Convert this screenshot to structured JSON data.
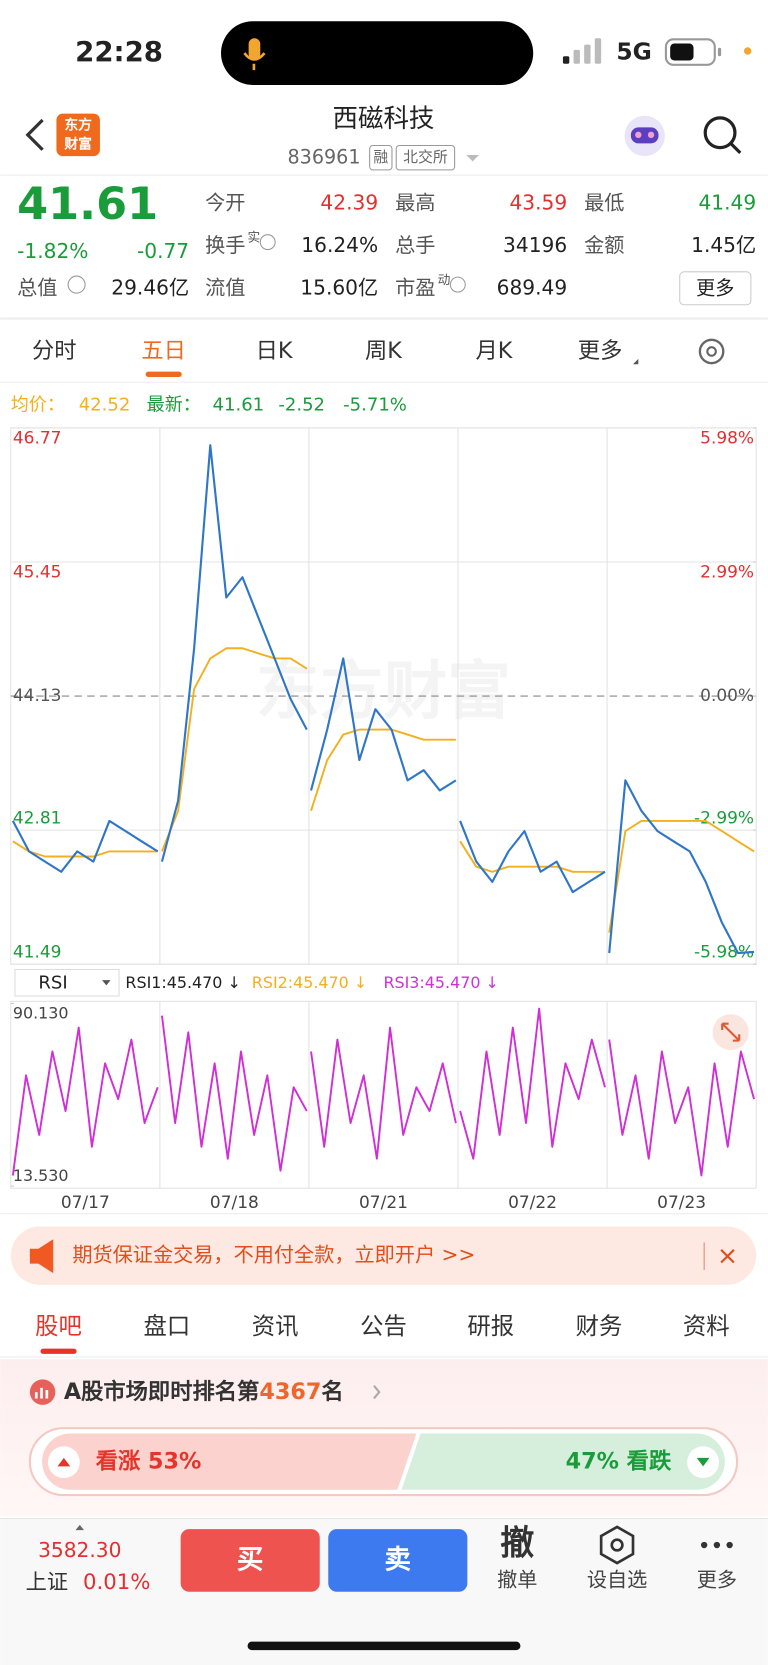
{
  "status_bar": {
    "time": "22:28",
    "network": "5G"
  },
  "header": {
    "logo": [
      "东方",
      "财富"
    ],
    "title": "西磁科技",
    "code": "836961",
    "tags": [
      "融",
      "北交所"
    ]
  },
  "quote": {
    "price": "41.61",
    "change_pct": "-1.82%",
    "change": "-0.77",
    "stats": [
      {
        "label": "今开",
        "value": "42.39",
        "color": "#e52f2f"
      },
      {
        "label": "最高",
        "value": "43.59",
        "color": "#e52f2f"
      },
      {
        "label": "最低",
        "value": "41.49",
        "color": "#1a9c3a"
      },
      {
        "label": "换手",
        "sup": "实",
        "value": "16.24%",
        "color": "#222"
      },
      {
        "label": "总手",
        "value": "34196",
        "color": "#222"
      },
      {
        "label": "金额",
        "value": "1.45亿",
        "color": "#222"
      },
      {
        "label": "流值",
        "value": "15.60亿",
        "color": "#222"
      },
      {
        "label": "市盈",
        "sup": "动",
        "value": "689.49",
        "color": "#222"
      }
    ],
    "total": {
      "label": "总值",
      "value": "29.46亿"
    },
    "more": "更多"
  },
  "tabs": {
    "items": [
      "分时",
      "五日",
      "日K",
      "周K",
      "月K",
      "更多"
    ],
    "active": 1
  },
  "chart": {
    "legend": {
      "avg_label": "均价：",
      "avg": "42.52",
      "latest_label": "最新：",
      "latest": "41.61",
      "change": "-2.52",
      "change_pct": "-5.71%"
    },
    "watermark": "东方财富",
    "ylim": [
      41.49,
      46.77
    ],
    "yticks": [
      46.77,
      45.45,
      44.13,
      42.81,
      41.49
    ],
    "y2lim": [
      -5.98,
      5.98
    ],
    "y2ticks": [
      {
        "value": 5.98,
        "label": "5.98%"
      },
      {
        "value": 2.99,
        "label": "2.99%"
      },
      {
        "value": 0,
        "label": "0.00%"
      },
      {
        "value": -2.99,
        "label": "-2.99%"
      },
      {
        "value": -5.98,
        "label": "-5.98%"
      }
    ],
    "price_color": "#2f76c8",
    "avg_color": "#f2b01e",
    "days": [
      {
        "date": "07/17",
        "price": [
          42.9,
          42.6,
          42.5,
          42.4,
          42.6,
          42.5,
          42.9,
          42.8,
          42.7,
          42.6
        ],
        "avg": [
          42.7,
          42.6,
          42.55,
          42.55,
          42.55,
          42.55,
          42.6,
          42.6,
          42.6,
          42.6
        ]
      },
      {
        "date": "07/18",
        "price": [
          42.5,
          43.1,
          44.6,
          46.6,
          45.1,
          45.3,
          44.9,
          44.5,
          44.1,
          43.8
        ],
        "avg": [
          42.6,
          43.0,
          44.2,
          44.5,
          44.6,
          44.6,
          44.55,
          44.5,
          44.5,
          44.4
        ]
      },
      {
        "date": "07/21",
        "price": [
          43.2,
          43.8,
          44.5,
          43.5,
          44.0,
          43.8,
          43.3,
          43.4,
          43.2,
          43.3
        ],
        "avg": [
          43.0,
          43.5,
          43.75,
          43.8,
          43.8,
          43.8,
          43.75,
          43.7,
          43.7,
          43.7
        ]
      },
      {
        "date": "07/22",
        "price": [
          42.9,
          42.5,
          42.3,
          42.6,
          42.8,
          42.4,
          42.5,
          42.2,
          42.3,
          42.4
        ],
        "avg": [
          42.7,
          42.45,
          42.4,
          42.45,
          42.45,
          42.45,
          42.45,
          42.4,
          42.4,
          42.4
        ]
      },
      {
        "date": "07/23",
        "price": [
          41.6,
          43.3,
          43.0,
          42.8,
          42.7,
          42.6,
          42.3,
          41.9,
          41.6,
          41.61
        ],
        "avg": [
          41.8,
          42.8,
          42.9,
          42.9,
          42.9,
          42.9,
          42.9,
          42.8,
          42.7,
          42.6
        ]
      }
    ]
  },
  "rsi": {
    "selector": "RSI",
    "labels": [
      {
        "text": "RSI1:45.470 ↓",
        "color": "#222"
      },
      {
        "text": "RSI2:45.470 ↓",
        "color": "#f2b01e"
      },
      {
        "text": "RSI3:45.470 ↓",
        "color": "#d12fd6"
      }
    ],
    "ylim": [
      13.53,
      90.13
    ],
    "yticks": [
      {
        "value": 90.13,
        "label": "90.130"
      },
      {
        "value": 13.53,
        "label": "13.530"
      }
    ],
    "color": "#d12fd6",
    "days": [
      [
        18,
        60,
        35,
        70,
        45,
        80,
        30,
        65,
        50,
        75,
        40,
        55
      ],
      [
        85,
        40,
        78,
        30,
        65,
        25,
        70,
        35,
        60,
        20,
        55,
        45
      ],
      [
        70,
        30,
        75,
        40,
        60,
        25,
        80,
        35,
        55,
        45,
        65,
        40
      ],
      [
        45,
        25,
        70,
        35,
        80,
        40,
        88,
        30,
        65,
        50,
        75,
        55
      ],
      [
        75,
        35,
        60,
        25,
        70,
        40,
        55,
        18,
        65,
        30,
        70,
        50
      ]
    ]
  },
  "banner": {
    "text": "期货保证金交易，不用付全款，立即开户 >>"
  },
  "sections": {
    "items": [
      "股吧",
      "盘口",
      "资讯",
      "公告",
      "研报",
      "财务",
      "资料"
    ],
    "active": 0
  },
  "ranking": {
    "prefix": "A股市场即时排名第",
    "rank": "4367",
    "suffix": "名"
  },
  "sentiment": {
    "up": "看涨 53%",
    "down": "47% 看跌"
  },
  "bottom_bar": {
    "index_value": "3582.30",
    "index_name": "上证",
    "index_change": "0.01%",
    "buy": "买",
    "sell": "卖",
    "cancel_icon": "撤",
    "actions": [
      "撤单",
      "设自选",
      "更多"
    ]
  }
}
